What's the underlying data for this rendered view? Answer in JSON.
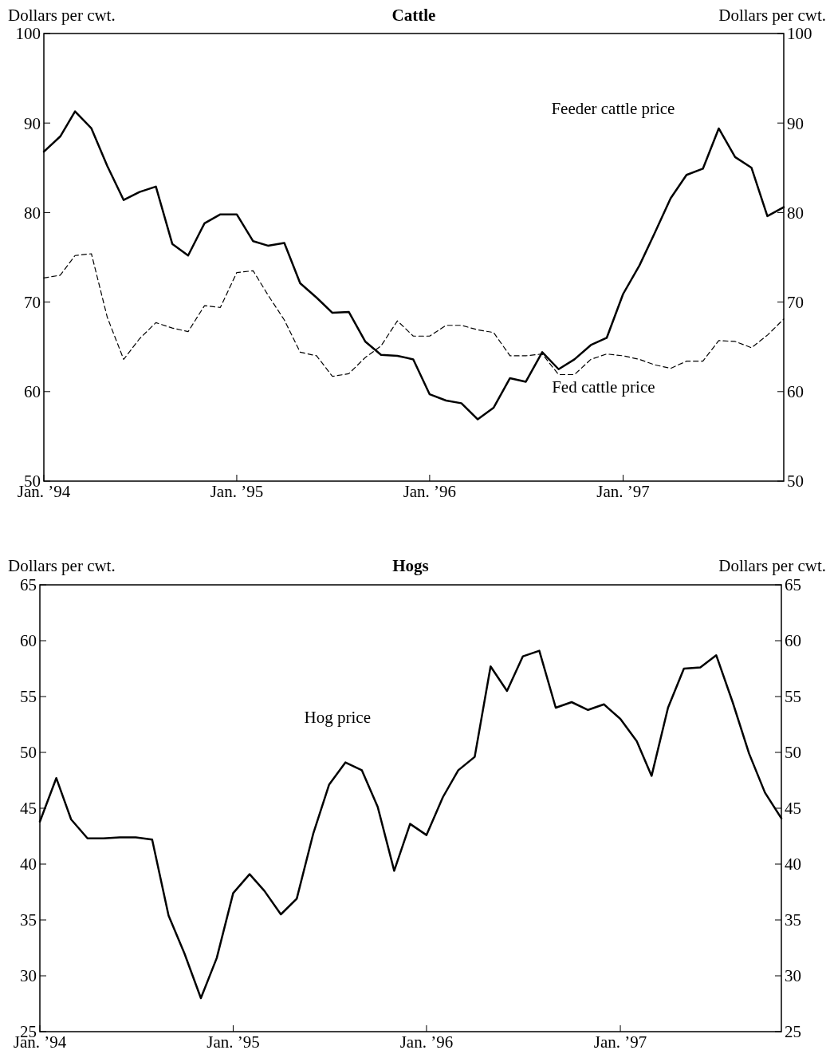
{
  "chart_data": [
    {
      "type": "line",
      "title": "Cattle",
      "ylabel": "Dollars per cwt.",
      "y2label": "Dollars per cwt.",
      "x": [
        "1994-01",
        "1994-02",
        "1994-03",
        "1994-04",
        "1994-05",
        "1994-06",
        "1994-07",
        "1994-08",
        "1994-09",
        "1994-10",
        "1994-11",
        "1994-12",
        "1995-01",
        "1995-02",
        "1995-03",
        "1995-04",
        "1995-05",
        "1995-06",
        "1995-07",
        "1995-08",
        "1995-09",
        "1995-10",
        "1995-11",
        "1995-12",
        "1996-01",
        "1996-02",
        "1996-03",
        "1996-04",
        "1996-05",
        "1996-06",
        "1996-07",
        "1996-08",
        "1996-09",
        "1996-10",
        "1996-11",
        "1996-12",
        "1997-01",
        "1997-02",
        "1997-03",
        "1997-04",
        "1997-05",
        "1997-06",
        "1997-07",
        "1997-08",
        "1997-09",
        "1997-10",
        "1997-11"
      ],
      "series": [
        {
          "name": "Feeder cattle price",
          "color": "#000000",
          "line_style": "solid",
          "values": [
            86.8,
            88.5,
            91.3,
            89.4,
            85.2,
            81.4,
            82.3,
            82.9,
            76.5,
            75.2,
            78.8,
            79.8,
            79.8,
            76.8,
            76.3,
            76.6,
            72.1,
            70.5,
            68.8,
            68.9,
            65.6,
            64.1,
            64.0,
            63.6,
            59.7,
            59.0,
            58.7,
            56.9,
            58.2,
            61.5,
            61.1,
            64.4,
            62.5,
            63.6,
            65.2,
            66.0,
            70.9,
            74.1,
            77.6,
            81.6,
            84.2,
            84.9,
            89.4,
            86.2,
            85.0,
            79.6,
            80.6
          ]
        },
        {
          "name": "Fed cattle price",
          "color": "#000000",
          "line_style": "dashed",
          "values": [
            72.7,
            73.0,
            75.2,
            75.4,
            68.3,
            63.6,
            65.9,
            67.7,
            67.1,
            66.7,
            69.6,
            69.4,
            73.3,
            73.5,
            70.8,
            68.0,
            64.4,
            64.0,
            61.7,
            62.0,
            63.8,
            65.1,
            67.9,
            66.2,
            66.2,
            67.4,
            67.4,
            66.9,
            66.6,
            64.0,
            64.0,
            64.2,
            61.9,
            61.9,
            63.6,
            64.2,
            64.0,
            63.6,
            63.0,
            62.6,
            63.4,
            63.4,
            65.7,
            65.6,
            64.9,
            66.3,
            68.1
          ]
        }
      ],
      "xlim": [
        "1994-01",
        "1997-11"
      ],
      "xticks": [
        {
          "value": "1994-01",
          "label": "Jan. ’94"
        },
        {
          "value": "1995-01",
          "label": "Jan. ’95"
        },
        {
          "value": "1996-01",
          "label": "Jan. ’96"
        },
        {
          "value": "1997-01",
          "label": "Jan. ’97"
        }
      ],
      "ylim": [
        50,
        100
      ],
      "yticks": [
        50,
        60,
        70,
        80,
        90,
        100
      ],
      "y2lim": [
        50,
        100
      ],
      "y2ticks": [
        50,
        60,
        70,
        80,
        90,
        100
      ],
      "grid": false,
      "legend": false
    },
    {
      "type": "line",
      "title": "Hogs",
      "ylabel": "Dollars per cwt.",
      "y2label": "Dollars per cwt.",
      "x": [
        "1994-01",
        "1994-02",
        "1994-03",
        "1994-04",
        "1994-05",
        "1994-06",
        "1994-07",
        "1994-08",
        "1994-09",
        "1994-10",
        "1994-11",
        "1994-12",
        "1995-01",
        "1995-02",
        "1995-03",
        "1995-04",
        "1995-05",
        "1995-06",
        "1995-07",
        "1995-08",
        "1995-09",
        "1995-10",
        "1995-11",
        "1995-12",
        "1996-01",
        "1996-02",
        "1996-03",
        "1996-04",
        "1996-05",
        "1996-06",
        "1996-07",
        "1996-08",
        "1996-09",
        "1996-10",
        "1996-11",
        "1996-12",
        "1997-01",
        "1997-02",
        "1997-03",
        "1997-04",
        "1997-05",
        "1997-06",
        "1997-07",
        "1997-08",
        "1997-09",
        "1997-10",
        "1997-11"
      ],
      "series": [
        {
          "name": "Hog price",
          "color": "#000000",
          "line_style": "solid",
          "values": [
            43.8,
            47.7,
            44.0,
            42.3,
            42.3,
            42.4,
            42.4,
            42.2,
            35.4,
            32.0,
            28.0,
            31.6,
            37.4,
            39.1,
            37.6,
            35.5,
            36.9,
            42.7,
            47.1,
            49.1,
            48.4,
            45.1,
            39.4,
            43.6,
            42.6,
            46.0,
            48.4,
            49.6,
            57.7,
            55.5,
            58.6,
            59.1,
            54.0,
            54.5,
            53.8,
            54.3,
            53.0,
            51.0,
            47.9,
            54.0,
            57.5,
            57.6,
            58.7,
            54.5,
            49.9,
            46.4,
            44.1
          ]
        }
      ],
      "xlim": [
        "1994-01",
        "1997-11"
      ],
      "xticks": [
        {
          "value": "1994-01",
          "label": "Jan. ’94"
        },
        {
          "value": "1995-01",
          "label": "Jan. ’95"
        },
        {
          "value": "1996-01",
          "label": "Jan. ’96"
        },
        {
          "value": "1997-01",
          "label": "Jan. ’97"
        }
      ],
      "ylim": [
        25,
        65
      ],
      "yticks": [
        25,
        30,
        35,
        40,
        45,
        50,
        55,
        60,
        65
      ],
      "y2lim": [
        25,
        65
      ],
      "y2ticks": [
        25,
        30,
        35,
        40,
        45,
        50,
        55,
        60,
        65
      ],
      "grid": false,
      "legend": false
    }
  ]
}
